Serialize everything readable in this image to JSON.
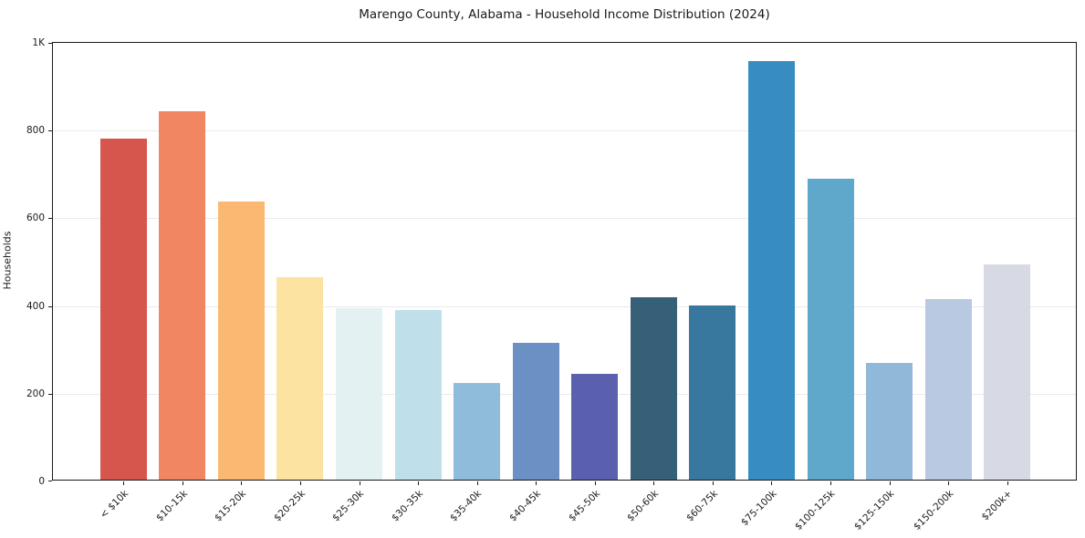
{
  "figure": {
    "background": "#ffffff",
    "frame_color": "#1a1a1a",
    "gridline_color": "#eaeaea"
  },
  "chart_data": {
    "type": "bar",
    "title": "Marengo County, Alabama - Household Income Distribution (2024)",
    "xlabel": "",
    "ylabel": "Households",
    "ylim": [
      0,
      1000
    ],
    "grid": true,
    "legend": "none",
    "categories": [
      "< $10k",
      "$10-15k",
      "$15-20k",
      "$20-25k",
      "$25-30k",
      "$30-35k",
      "$35-40k",
      "$40-45k",
      "$45-50k",
      "$50-60k",
      "$60-75k",
      "$75-100k",
      "$100-125k",
      "$125-150k",
      "$150-200k",
      "$200k+"
    ],
    "values": [
      778,
      839,
      634,
      462,
      390,
      387,
      220,
      311,
      242,
      416,
      397,
      955,
      687,
      266,
      411,
      491
    ],
    "bar_colors": [
      "#d6564e",
      "#f18762",
      "#fab873",
      "#fde3a2",
      "#e4f1f3",
      "#bfe0eb",
      "#90bcdb",
      "#6b90c4",
      "#5a5fae",
      "#365f78",
      "#38789f",
      "#378cc2",
      "#5fa7cb",
      "#90b8d8",
      "#b9c9e1",
      "#d7d9e5"
    ],
    "ytick_values": [
      0,
      200,
      400,
      600,
      800,
      1000
    ],
    "ytick_labels": [
      "0",
      "200",
      "400",
      "600",
      "800",
      "1K"
    ]
  }
}
